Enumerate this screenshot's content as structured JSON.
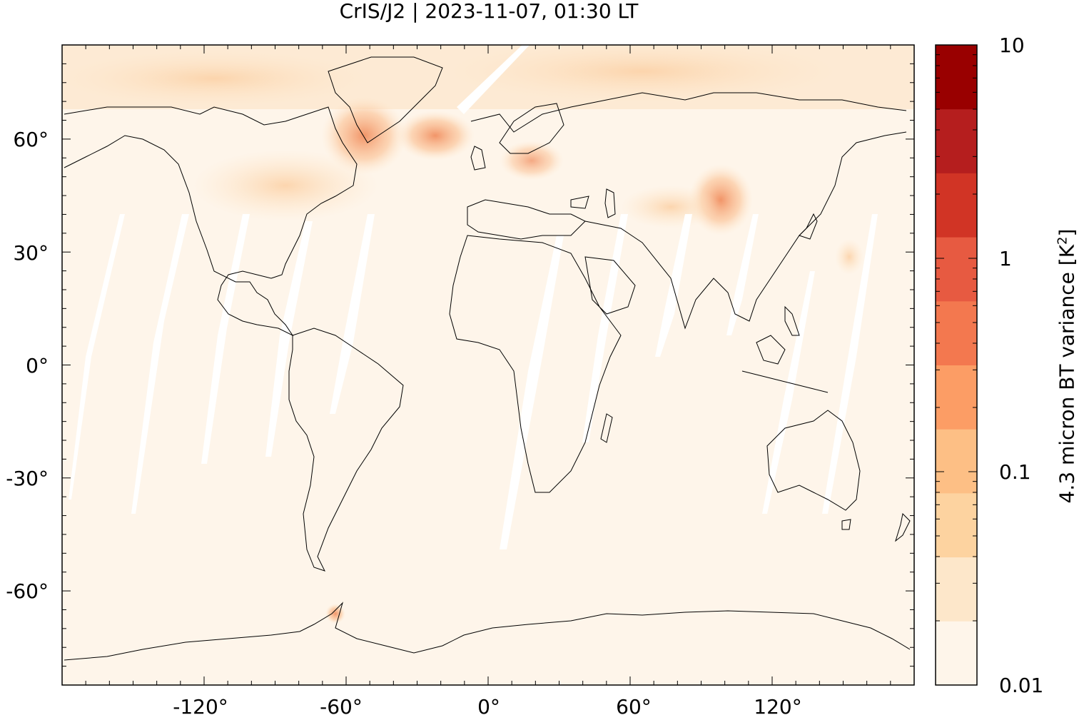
{
  "title": "CrIS/J2 | 2023-11-07, 01:30 LT",
  "chart_data": {
    "type": "heatmap",
    "projection": "equirectangular",
    "x_ticks": [
      "-120°",
      "-60°",
      "0°",
      "60°",
      "120°"
    ],
    "x_tick_values": [
      -120,
      -60,
      0,
      60,
      120
    ],
    "y_ticks": [
      "60°",
      "30°",
      "0°",
      "-30°",
      "-60°"
    ],
    "y_tick_values": [
      60,
      30,
      0,
      -30,
      -60
    ],
    "xlim": [
      -180,
      180
    ],
    "ylim": [
      -85,
      85
    ],
    "colorbar": {
      "label": "4.3 micron BT variance [K",
      "label_sup": "2",
      "label_close": "]",
      "scale": "log",
      "range": [
        0.01,
        10
      ],
      "tick_labels": [
        "10",
        "1",
        "0.1",
        "0.01"
      ],
      "tick_values": [
        10,
        1,
        0.1,
        0.01
      ],
      "colors": [
        "#fef5ea",
        "#fde7ca",
        "#fdd3a0",
        "#fdbf85",
        "#fc9d65",
        "#f3784f",
        "#e75a41",
        "#d13425",
        "#b51e1e",
        "#990000"
      ]
    },
    "features": {
      "background_variance": "0.01-0.02",
      "elevated_regions": [
        "Greenland / Labrador Sea",
        "North Atlantic",
        "Eastern Europe",
        "Central Asia / Mongolia",
        "Antarctic Peninsula"
      ],
      "data_gaps": "swath gaps between satellite orbits (white diagonal stripes)"
    }
  }
}
